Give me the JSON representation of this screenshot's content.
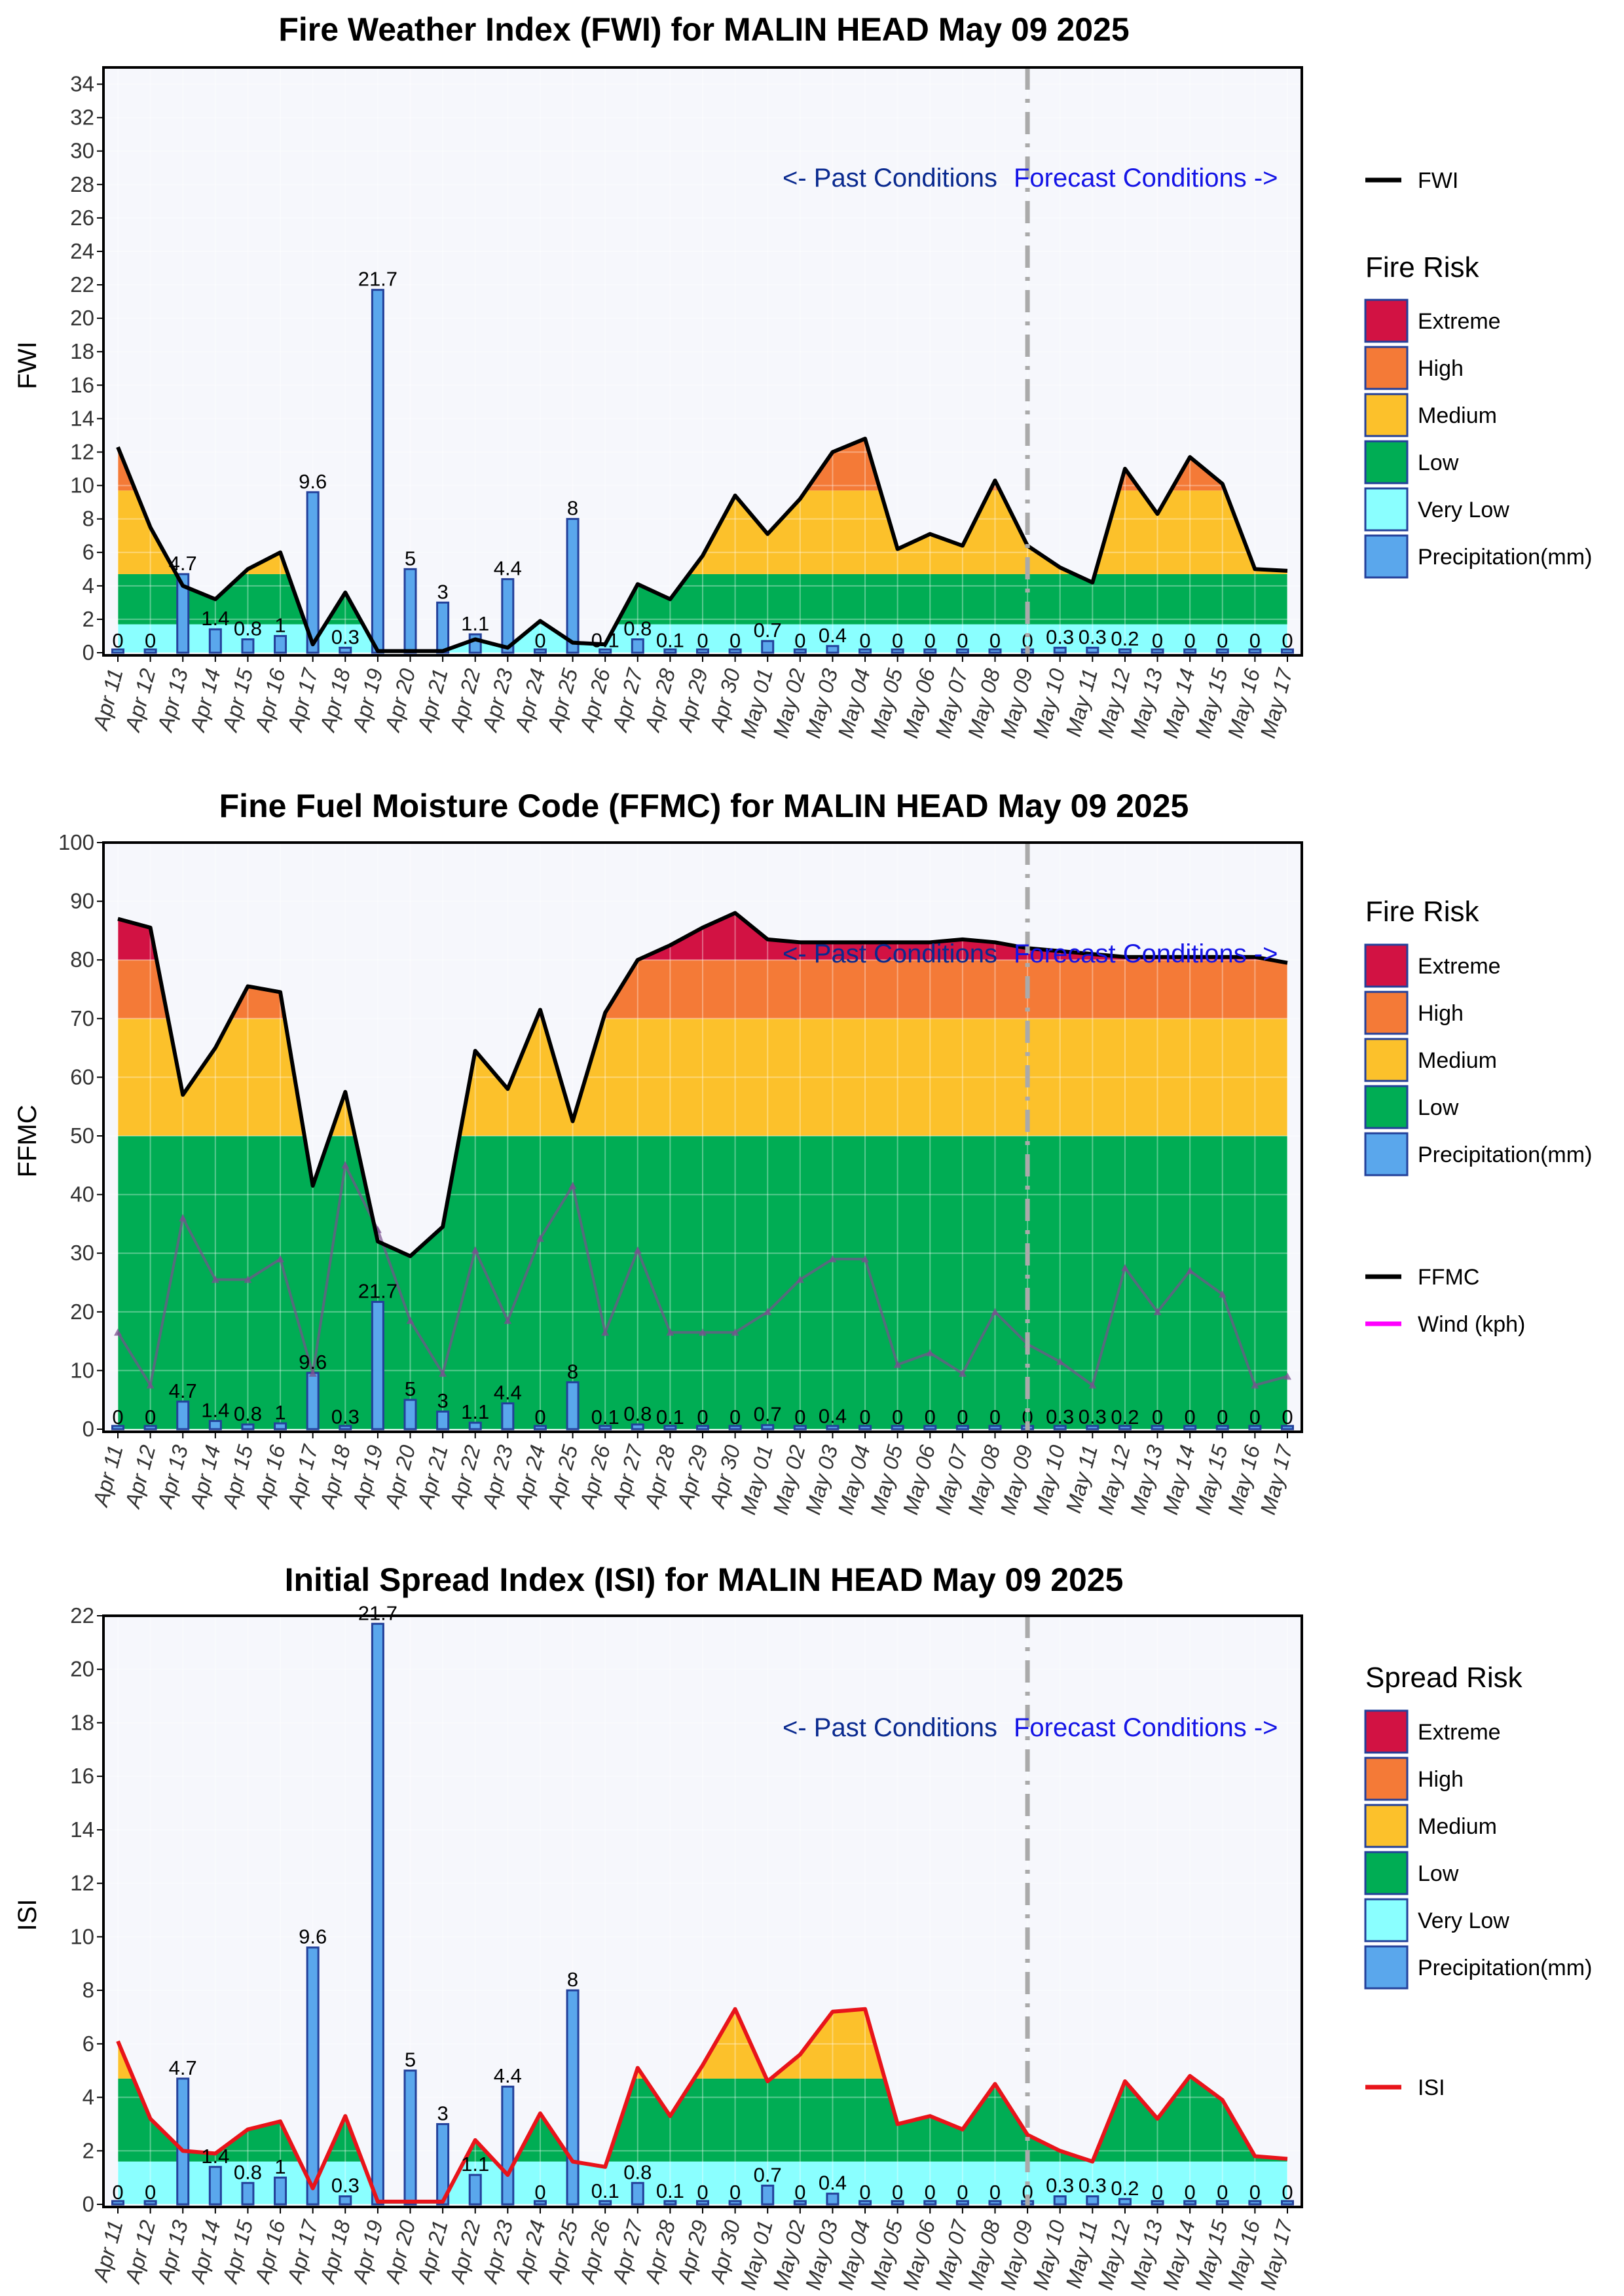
{
  "colors": {
    "extreme": "#d21243",
    "high": "#f47a37",
    "medium": "#fcc12b",
    "low": "#00ad54",
    "very_low": "#8affff",
    "precip": "#5aa7ec",
    "precip_edge": "#23409a",
    "plot_bg": "#f6f7fc",
    "fwi_line": "#000000",
    "ffmc_line": "#000000",
    "wind_line": "#ff00ff",
    "wind_plotted": "#7a4f8f",
    "isi_line": "#e8141a",
    "past_text": "#0a2a8f",
    "forecast_text": "#1414e6",
    "divider": "#aaaaaa"
  },
  "annotations": {
    "past": "<- Past Conditions",
    "forecast": "Forecast Conditions ->"
  },
  "chart_data": [
    {
      "type": "area",
      "title": "Fire Weather Index (FWI) for MALIN HEAD May 09 2025",
      "ylabel": "FWI",
      "ylim": [
        0,
        35
      ],
      "yticks": [
        0,
        2,
        4,
        6,
        8,
        10,
        12,
        14,
        16,
        18,
        20,
        22,
        24,
        26,
        28,
        30,
        32,
        34
      ],
      "categories": [
        "Apr 11",
        "Apr 12",
        "Apr 13",
        "Apr 14",
        "Apr 15",
        "Apr 16",
        "Apr 17",
        "Apr 18",
        "Apr 19",
        "Apr 20",
        "Apr 21",
        "Apr 22",
        "Apr 23",
        "Apr 24",
        "Apr 25",
        "Apr 26",
        "Apr 27",
        "Apr 28",
        "Apr 29",
        "Apr 30",
        "May 01",
        "May 02",
        "May 03",
        "May 04",
        "May 05",
        "May 06",
        "May 07",
        "May 08",
        "May 09",
        "May 10",
        "May 11",
        "May 12",
        "May 13",
        "May 14",
        "May 15",
        "May 16",
        "May 17"
      ],
      "thresholds": {
        "very_low": 1.7,
        "low": 4.7,
        "medium": 9.7,
        "high": 13.5
      },
      "series": [
        {
          "name": "FWI",
          "values": [
            12.3,
            7.5,
            4.0,
            3.2,
            5.0,
            6.0,
            0.5,
            3.6,
            0.1,
            0.1,
            0.1,
            0.8,
            0.3,
            1.9,
            0.6,
            0.5,
            4.1,
            3.2,
            5.8,
            9.4,
            7.1,
            9.2,
            12.0,
            12.8,
            6.2,
            7.1,
            6.4,
            10.3,
            6.4,
            5.1,
            4.2,
            11.0,
            8.3,
            11.7,
            10.1,
            5.0,
            4.9
          ]
        },
        {
          "name": "Precipitation(mm)",
          "values": [
            0,
            0,
            4.7,
            1.4,
            0.8,
            1,
            9.6,
            0.3,
            21.7,
            5,
            3,
            1.1,
            4.4,
            0,
            8,
            0.1,
            0.8,
            0.1,
            0,
            0,
            0.7,
            0,
            0.4,
            0,
            0,
            0,
            0,
            0,
            0,
            0.3,
            0.3,
            0.2,
            0,
            0,
            0,
            0,
            0
          ]
        }
      ],
      "precip_labels": [
        "0",
        "0",
        "4.7",
        "1.4",
        "0.8",
        "1",
        "9.6",
        "0.3",
        "21.7",
        "5",
        "3",
        "1.1",
        "4.4",
        "0",
        "8",
        "0.1",
        "0.8",
        "0.1",
        "0",
        "0",
        "0.7",
        "0",
        "0.4",
        "0",
        "0",
        "0",
        "0",
        "0",
        "0",
        "0.3",
        "0.3",
        "0.2",
        "0",
        "0",
        "0",
        "0",
        "0"
      ],
      "forecast_start": "May 09",
      "legend_title": "Fire Risk",
      "legend": {
        "line": "FWI",
        "categories": [
          "Extreme",
          "High",
          "Medium",
          "Low",
          "Very Low",
          "Precipitation(mm)"
        ]
      }
    },
    {
      "type": "area",
      "title": "Fine Fuel Moisture Code (FFMC) for MALIN HEAD May 09 2025",
      "ylabel": "FFMC",
      "ylim": [
        0,
        100
      ],
      "yticks": [
        0,
        10,
        20,
        30,
        40,
        50,
        60,
        70,
        80,
        90,
        100
      ],
      "categories": [
        "Apr 11",
        "Apr 12",
        "Apr 13",
        "Apr 14",
        "Apr 15",
        "Apr 16",
        "Apr 17",
        "Apr 18",
        "Apr 19",
        "Apr 20",
        "Apr 21",
        "Apr 22",
        "Apr 23",
        "Apr 24",
        "Apr 25",
        "Apr 26",
        "Apr 27",
        "Apr 28",
        "Apr 29",
        "Apr 30",
        "May 01",
        "May 02",
        "May 03",
        "May 04",
        "May 05",
        "May 06",
        "May 07",
        "May 08",
        "May 09",
        "May 10",
        "May 11",
        "May 12",
        "May 13",
        "May 14",
        "May 15",
        "May 16",
        "May 17"
      ],
      "thresholds": {
        "low": 50,
        "medium": 70,
        "high": 80
      },
      "series": [
        {
          "name": "FFMC",
          "values": [
            87,
            85.5,
            57,
            65,
            75.5,
            74.5,
            41.5,
            57.5,
            32,
            29.5,
            34.5,
            64.5,
            58,
            71.5,
            52.5,
            71,
            80,
            82.5,
            85.5,
            88,
            83.5,
            83,
            83,
            83,
            83,
            83,
            83.5,
            83,
            82,
            81.5,
            81,
            80.5,
            80.5,
            80.5,
            80.5,
            80.5,
            79.5
          ]
        },
        {
          "name": "Wind (kph)",
          "values": [
            16.5,
            7.5,
            36,
            25.5,
            25.5,
            29,
            9.5,
            45,
            34,
            18.5,
            9.5,
            30.5,
            18.5,
            32.5,
            41.5,
            16.5,
            30.5,
            16.5,
            16.5,
            16.5,
            20,
            25.5,
            29,
            29,
            11,
            13,
            9.5,
            20,
            14.5,
            11.5,
            7.5,
            27.5,
            20,
            27,
            23,
            7.5,
            9
          ]
        },
        {
          "name": "Precipitation(mm)",
          "values": [
            0,
            0,
            4.7,
            1.4,
            0.8,
            1,
            9.6,
            0.3,
            21.7,
            5,
            3,
            1.1,
            4.4,
            0,
            8,
            0.1,
            0.8,
            0.1,
            0,
            0,
            0.7,
            0,
            0.4,
            0,
            0,
            0,
            0,
            0,
            0,
            0.3,
            0.3,
            0.2,
            0,
            0,
            0,
            0,
            0
          ]
        }
      ],
      "precip_labels": [
        "0",
        "0",
        "4.7",
        "1.4",
        "0.8",
        "1",
        "9.6",
        "0.3",
        "21.7",
        "5",
        "3",
        "1.1",
        "4.4",
        "0",
        "8",
        "0.1",
        "0.8",
        "0.1",
        "0",
        "0",
        "0.7",
        "0",
        "0.4",
        "0",
        "0",
        "0",
        "0",
        "0",
        "0",
        "0.3",
        "0.3",
        "0.2",
        "0",
        "0",
        "0",
        "0",
        "0"
      ],
      "forecast_start": "May 09",
      "legend_title": "Fire Risk",
      "legend": {
        "categories": [
          "Extreme",
          "High",
          "Medium",
          "Low",
          "Precipitation(mm)"
        ],
        "lines": [
          "FFMC",
          "Wind (kph)"
        ]
      }
    },
    {
      "type": "area",
      "title": "Initial Spread Index (ISI) for MALIN HEAD May 09 2025",
      "ylabel": "ISI",
      "ylim": [
        0,
        22
      ],
      "yticks": [
        0,
        2,
        4,
        6,
        8,
        10,
        12,
        14,
        16,
        18,
        20,
        22
      ],
      "categories": [
        "Apr 11",
        "Apr 12",
        "Apr 13",
        "Apr 14",
        "Apr 15",
        "Apr 16",
        "Apr 17",
        "Apr 18",
        "Apr 19",
        "Apr 20",
        "Apr 21",
        "Apr 22",
        "Apr 23",
        "Apr 24",
        "Apr 25",
        "Apr 26",
        "Apr 27",
        "Apr 28",
        "Apr 29",
        "Apr 30",
        "May 01",
        "May 02",
        "May 03",
        "May 04",
        "May 05",
        "May 06",
        "May 07",
        "May 08",
        "May 09",
        "May 10",
        "May 11",
        "May 12",
        "May 13",
        "May 14",
        "May 15",
        "May 16",
        "May 17"
      ],
      "thresholds": {
        "very_low": 1.6,
        "low": 4.7,
        "medium": 8.5,
        "high": 12.5
      },
      "series": [
        {
          "name": "ISI",
          "values": [
            6.1,
            3.2,
            2.0,
            1.9,
            2.8,
            3.1,
            0.6,
            3.3,
            0.1,
            0.1,
            0.1,
            2.4,
            1.1,
            3.4,
            1.6,
            1.4,
            5.1,
            3.3,
            5.2,
            7.3,
            4.6,
            5.6,
            7.2,
            7.3,
            3.0,
            3.3,
            2.8,
            4.5,
            2.6,
            2.0,
            1.6,
            4.6,
            3.2,
            4.8,
            3.9,
            1.8,
            1.7
          ]
        },
        {
          "name": "Precipitation(mm)",
          "values": [
            0,
            0,
            4.7,
            1.4,
            0.8,
            1,
            9.6,
            0.3,
            21.7,
            5,
            3,
            1.1,
            4.4,
            0,
            8,
            0.1,
            0.8,
            0.1,
            0,
            0,
            0.7,
            0,
            0.4,
            0,
            0,
            0,
            0,
            0,
            0,
            0.3,
            0.3,
            0.2,
            0,
            0,
            0,
            0,
            0
          ]
        }
      ],
      "precip_labels": [
        "0",
        "0",
        "4.7",
        "1.4",
        "0.8",
        "1",
        "9.6",
        "0.3",
        "21.7",
        "5",
        "3",
        "1.1",
        "4.4",
        "0",
        "8",
        "0.1",
        "0.8",
        "0.1",
        "0",
        "0",
        "0.7",
        "0",
        "0.4",
        "0",
        "0",
        "0",
        "0",
        "0",
        "0",
        "0.3",
        "0.3",
        "0.2",
        "0",
        "0",
        "0",
        "0",
        "0"
      ],
      "forecast_start": "May 09",
      "legend_title": "Spread Risk",
      "legend": {
        "categories": [
          "Extreme",
          "High",
          "Medium",
          "Low",
          "Very Low",
          "Precipitation(mm)"
        ],
        "line": "ISI"
      }
    }
  ]
}
